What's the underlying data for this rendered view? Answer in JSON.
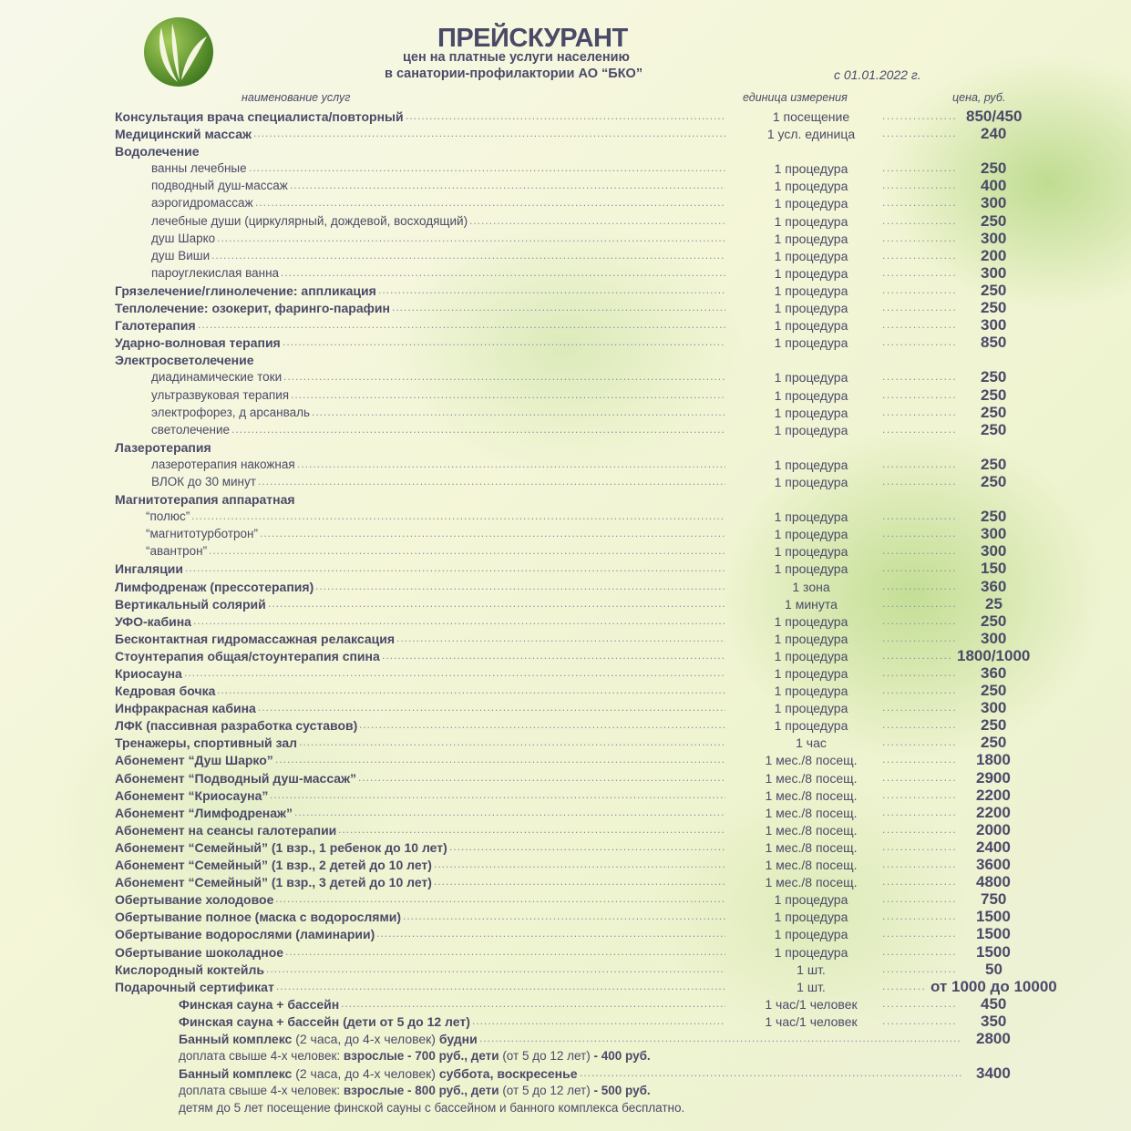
{
  "header": {
    "title": "ПРЕЙСКУРАНТ",
    "subtitle1": "цен на платные услуги населению",
    "subtitle2": "в санатории-профилактории АО “БКО”",
    "date": "с 01.01.2022 г.",
    "col_name": "наименование услуг",
    "col_unit": "единица измерения",
    "col_price": "цена, руб."
  },
  "colors": {
    "text": "#4a4a68",
    "logo": "#5b8f2a"
  },
  "rows": [
    {
      "kind": "item",
      "name": "Консультация врача специалиста/повторный",
      "unit": "1 посещение",
      "price": "850/450"
    },
    {
      "kind": "item",
      "name": "Медицинский массаж",
      "unit": "1 усл. единица",
      "price": "240"
    },
    {
      "kind": "cat",
      "name": "Водолечение"
    },
    {
      "kind": "sub",
      "name": "ванны лечебные",
      "unit": "1 процедура",
      "price": "250"
    },
    {
      "kind": "sub",
      "name": "подводный душ-массаж",
      "unit": "1 процедура",
      "price": "400"
    },
    {
      "kind": "sub",
      "name": "аэрогидромассаж",
      "unit": "1 процедура",
      "price": "300"
    },
    {
      "kind": "sub",
      "name": "лечебные души (циркулярный, дождевой, восходящий)",
      "unit": "1 процедура",
      "price": "250"
    },
    {
      "kind": "sub",
      "name": "душ Шарко",
      "unit": "1 процедура",
      "price": "300"
    },
    {
      "kind": "sub",
      "name": "душ Виши",
      "unit": "1 процедура",
      "price": "200"
    },
    {
      "kind": "sub",
      "name": "пароуглекислая ванна",
      "unit": "1 процедура",
      "price": "300"
    },
    {
      "kind": "item",
      "name": "Грязелечение/глинолечение: аппликация",
      "unit": "1 процедура",
      "price": "250"
    },
    {
      "kind": "item",
      "name": "Теплолечение: озокерит, фаринго-парафин",
      "unit": "1 процедура",
      "price": "250"
    },
    {
      "kind": "item",
      "name": "Галотерапия",
      "unit": "1 процедура",
      "price": "300"
    },
    {
      "kind": "item",
      "name": "Ударно-волновая терапия",
      "unit": "1 процедура",
      "price": "850"
    },
    {
      "kind": "cat",
      "name": "Электросветолечение"
    },
    {
      "kind": "sub",
      "name": "диадинамические токи",
      "unit": "1 процедура",
      "price": "250"
    },
    {
      "kind": "sub",
      "name": "ультразвуковая терапия",
      "unit": "1 процедура",
      "price": "250"
    },
    {
      "kind": "sub",
      "name": "электрофорез, д арсанваль",
      "unit": "1 процедура",
      "price": "250"
    },
    {
      "kind": "sub",
      "name": "светолечение",
      "unit": "1 процедура",
      "price": "250"
    },
    {
      "kind": "cat",
      "name": "Лазеротерапия"
    },
    {
      "kind": "sub",
      "name": "лазеротерапия накожная",
      "unit": "1 процедура",
      "price": "250"
    },
    {
      "kind": "sub",
      "name": "ВЛОК до 30 минут",
      "unit": "1 процедура",
      "price": "250"
    },
    {
      "kind": "cat",
      "name": "Магнитотерапия аппаратная"
    },
    {
      "kind": "quote",
      "name": "“полюс”",
      "unit": "1 процедура",
      "price": "250"
    },
    {
      "kind": "quote",
      "name": "“магнитотурботрон”",
      "unit": "1 процедура",
      "price": "300"
    },
    {
      "kind": "quote",
      "name": "“авантрон”",
      "unit": "1 процедура",
      "price": "300"
    },
    {
      "kind": "item",
      "name": "Ингаляции",
      "unit": "1 процедура",
      "price": "150"
    },
    {
      "kind": "item",
      "name": "Лимфодренаж (прессотерапия)",
      "unit": "1 зона",
      "price": "360"
    },
    {
      "kind": "item",
      "name": "Вертикальный солярий",
      "unit": "1 минута",
      "price": "25"
    },
    {
      "kind": "item",
      "name": "УФО-кабина",
      "unit": "1 процедура",
      "price": "250"
    },
    {
      "kind": "item",
      "name": "Бесконтактная гидромассажная релаксация",
      "unit": "1 процедура",
      "price": "300"
    },
    {
      "kind": "item",
      "name": "Стоунтерапия общая/стоунтерапия спина",
      "unit": "1 процедура",
      "price": "1800/1000"
    },
    {
      "kind": "item",
      "name": "Криосауна",
      "unit": "1 процедура",
      "price": "360"
    },
    {
      "kind": "item",
      "name": "Кедровая бочка",
      "unit": "1 процедура",
      "price": "250"
    },
    {
      "kind": "item",
      "name": "Инфракрасная кабина",
      "unit": "1 процедура",
      "price": "300"
    },
    {
      "kind": "item",
      "name": "ЛФК (пассивная разработка суставов)",
      "unit": "1 процедура",
      "price": "250"
    },
    {
      "kind": "item",
      "name": "Тренажеры, спортивный зал",
      "unit": "1 час",
      "price": "250"
    },
    {
      "kind": "item",
      "name": "Абонемент “Душ Шарко”",
      "unit": "1 мес./8 посещ.",
      "price": "1800"
    },
    {
      "kind": "item",
      "name": "Абонемент “Подводный душ-массаж”",
      "unit": "1 мес./8 посещ.",
      "price": "2900"
    },
    {
      "kind": "item",
      "name": "Абонемент “Криосауна”",
      "unit": "1 мес./8 посещ.",
      "price": "2200"
    },
    {
      "kind": "item",
      "name": "Абонемент “Лимфодренаж”",
      "unit": "1 мес./8 посещ.",
      "price": "2200"
    },
    {
      "kind": "item",
      "name": "Абонемент на сеансы галотерапии",
      "unit": "1 мес./8 посещ.",
      "price": "2000"
    },
    {
      "kind": "item",
      "name": "Абонемент “Семейный” (1 взр., 1 ребенок до 10 лет)",
      "unit": "1 мес./8 посещ.",
      "price": "2400"
    },
    {
      "kind": "item",
      "name": "Абонемент “Семейный” (1 взр., 2 детей до 10 лет)",
      "unit": "1 мес./8 посещ.",
      "price": "3600"
    },
    {
      "kind": "item",
      "name": "Абонемент “Семейный” (1 взр., 3 детей до 10 лет)",
      "unit": "1 мес./8 посещ.",
      "price": "4800"
    },
    {
      "kind": "item",
      "name": "Обертывание холодовое",
      "unit": "1 процедура",
      "price": "750"
    },
    {
      "kind": "item",
      "name": "Обертывание полное (маска с водорослями)",
      "unit": "1 процедура",
      "price": "1500"
    },
    {
      "kind": "item",
      "name": "Обертывание водорослями (ламинарии)",
      "unit": "1 процедура",
      "price": "1500"
    },
    {
      "kind": "item",
      "name": "Обертывание шоколадное",
      "unit": "1 процедура",
      "price": "1500"
    },
    {
      "kind": "item",
      "name": "Кислородный коктейль",
      "unit": "1 шт.",
      "price": "50"
    },
    {
      "kind": "item",
      "name": "Подарочный сертификат",
      "unit": "1 шт.",
      "price": "от 1000 до 10000"
    },
    {
      "kind": "sauna",
      "name": "Финская сауна + бассейн",
      "unit": "1 час/1 человек",
      "price": "450"
    },
    {
      "kind": "sauna",
      "name": "Финская сауна + бассейн (дети от 5 до 12 лет)",
      "unit": "1 час/1 человек",
      "price": "350"
    },
    {
      "kind": "sauna",
      "parts": [
        {
          "text": "Банный комплекс",
          "bold": true
        },
        {
          "text": " (2 часа, до 4-х человек) ",
          "bold": false
        },
        {
          "text": "будни",
          "bold": true
        }
      ],
      "price": "2800",
      "longdots": true
    },
    {
      "kind": "note",
      "parts": [
        {
          "text": "доплата свыше 4-х человек: ",
          "bold": false
        },
        {
          "text": "взрослые - 700 руб., дети",
          "bold": true
        },
        {
          "text": " (от 5 до 12 лет) ",
          "bold": false
        },
        {
          "text": "- 400 руб.",
          "bold": true
        }
      ]
    },
    {
      "kind": "sauna",
      "parts": [
        {
          "text": "Банный комплекс",
          "bold": true
        },
        {
          "text": " (2 часа, до 4-х человек) ",
          "bold": false
        },
        {
          "text": "суббота, воскресенье",
          "bold": true
        }
      ],
      "price": "3400",
      "longdots": true
    },
    {
      "kind": "note",
      "parts": [
        {
          "text": "доплата свыше 4-х человек: ",
          "bold": false
        },
        {
          "text": "взрослые - 800 руб., дети",
          "bold": true
        },
        {
          "text": " (от 5 до 12 лет) ",
          "bold": false
        },
        {
          "text": "- 500 руб.",
          "bold": true
        }
      ]
    },
    {
      "kind": "note",
      "parts": [
        {
          "text": "детям до 5 лет посещение финской сауны с бассейном и банного комплекса бесплатно.",
          "bold": false
        }
      ]
    }
  ]
}
